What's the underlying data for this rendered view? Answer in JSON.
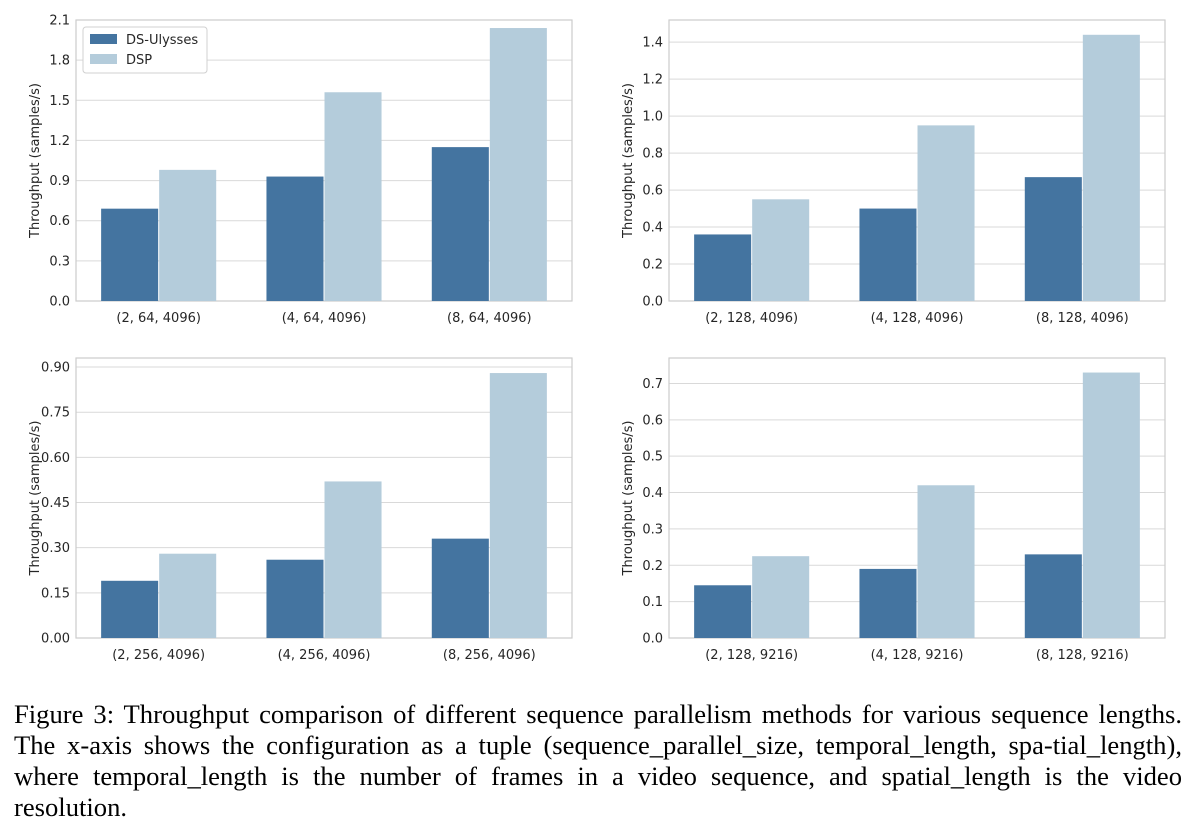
{
  "colors": {
    "ds_ulysses": "#4474a0",
    "dsp": "#b4ccdb",
    "grid": "#d9d9d9",
    "axis": "#cccccc"
  },
  "chart_data": [
    {
      "type": "bar",
      "categories": [
        "(2, 64, 4096)",
        "(4, 64, 4096)",
        "(8, 64, 4096)"
      ],
      "series": [
        {
          "name": "DS-Ulysses",
          "values": [
            0.69,
            0.93,
            1.15
          ]
        },
        {
          "name": "DSP",
          "values": [
            0.98,
            1.56,
            2.04
          ]
        }
      ],
      "ylabel": "Throughput (samples/s)",
      "ylim": [
        0,
        2.1
      ],
      "yticks": [
        "0.0",
        "0.3",
        "0.6",
        "0.9",
        "1.2",
        "1.5",
        "1.8",
        "2.1"
      ],
      "legend": "top-left",
      "grid": "horizontal"
    },
    {
      "type": "bar",
      "categories": [
        "(2, 128, 4096)",
        "(4, 128, 4096)",
        "(8, 128, 4096)"
      ],
      "series": [
        {
          "name": "DS-Ulysses",
          "values": [
            0.36,
            0.5,
            0.67
          ]
        },
        {
          "name": "DSP",
          "values": [
            0.55,
            0.95,
            1.44
          ]
        }
      ],
      "ylabel": "Throughput (samples/s)",
      "ylim": [
        0,
        1.52
      ],
      "yticks": [
        "0.0",
        "0.2",
        "0.4",
        "0.6",
        "0.8",
        "1.0",
        "1.2",
        "1.4"
      ],
      "grid": "horizontal"
    },
    {
      "type": "bar",
      "categories": [
        "(2, 256, 4096)",
        "(4, 256, 4096)",
        "(8, 256, 4096)"
      ],
      "series": [
        {
          "name": "DS-Ulysses",
          "values": [
            0.19,
            0.26,
            0.33
          ]
        },
        {
          "name": "DSP",
          "values": [
            0.28,
            0.52,
            0.88
          ]
        }
      ],
      "ylabel": "Throughput (samples/s)",
      "ylim": [
        0,
        0.93
      ],
      "yticks": [
        "0.00",
        "0.15",
        "0.30",
        "0.45",
        "0.60",
        "0.75",
        "0.90"
      ],
      "grid": "horizontal"
    },
    {
      "type": "bar",
      "categories": [
        "(2, 128, 9216)",
        "(4, 128, 9216)",
        "(8, 128, 9216)"
      ],
      "series": [
        {
          "name": "DS-Ulysses",
          "values": [
            0.145,
            0.19,
            0.23
          ]
        },
        {
          "name": "DSP",
          "values": [
            0.225,
            0.42,
            0.73
          ]
        }
      ],
      "ylabel": "Throughput (samples/s)",
      "ylim": [
        0,
        0.77
      ],
      "yticks": [
        "0.0",
        "0.1",
        "0.2",
        "0.3",
        "0.4",
        "0.5",
        "0.6",
        "0.7"
      ],
      "grid": "horizontal"
    }
  ],
  "caption": "Figure 3: Throughput comparison of different sequence parallelism methods for various sequence lengths. The x-axis shows the configuration as a tuple (sequence_parallel_size, temporal_length, spa-tial_length), where temporal_length is the number of frames in a video sequence, and spatial_length is the video resolution."
}
